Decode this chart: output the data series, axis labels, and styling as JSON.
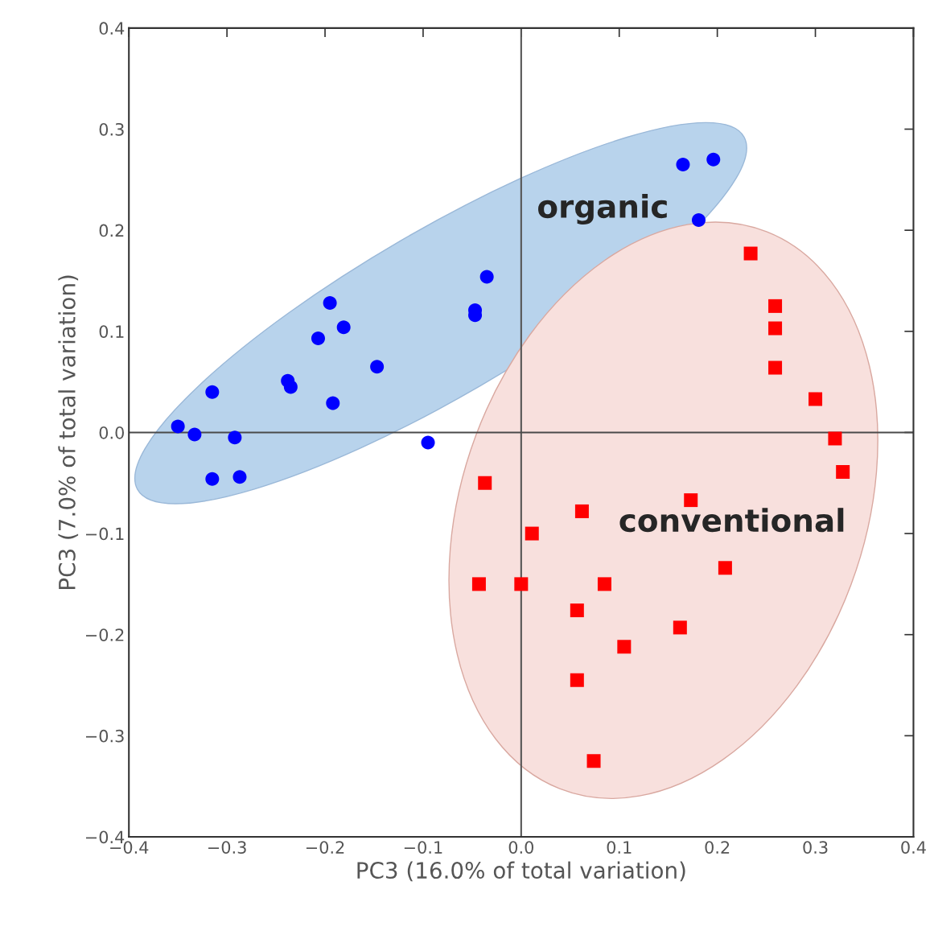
{
  "chart_data": {
    "type": "scatter",
    "xlabel": "PC3 (16.0% of total variation)",
    "ylabel": "PC3 (7.0% of total variation)",
    "series": [
      {
        "color": "#0000ff",
        "marker": "circle",
        "x": [
          -0.35,
          -0.333,
          -0.315,
          -0.292,
          -0.315,
          -0.287,
          -0.238,
          -0.235,
          -0.207,
          -0.195,
          -0.192,
          -0.181,
          -0.147,
          -0.095,
          -0.047,
          -0.047,
          -0.035,
          0.165,
          0.196,
          0.181
        ],
        "values": [
          0.006,
          -0.002,
          0.04,
          -0.005,
          -0.046,
          -0.044,
          0.051,
          0.045,
          0.093,
          0.128,
          0.029,
          0.104,
          0.065,
          -0.01,
          0.121,
          0.116,
          0.154,
          0.265,
          0.27,
          0.21
        ]
      },
      {
        "color": "#ff0000",
        "marker": "square",
        "x": [
          0.234,
          0.259,
          0.259,
          0.259,
          0.3,
          0.32,
          0.328,
          -0.037,
          -0.043,
          0.0,
          0.011,
          0.062,
          0.085,
          0.057,
          0.105,
          0.057,
          0.074,
          0.173,
          0.208,
          0.162
        ],
        "values": [
          0.177,
          0.125,
          0.103,
          0.064,
          0.033,
          -0.006,
          -0.039,
          -0.05,
          -0.15,
          -0.15,
          -0.1,
          -0.078,
          -0.15,
          -0.176,
          -0.212,
          -0.245,
          -0.325,
          -0.067,
          -0.134,
          -0.193
        ]
      }
    ],
    "annotations": [
      "organic",
      "conventional"
    ],
    "ref_lines": [
      {
        "axis": "x",
        "value": 0.0,
        "color": "#555555"
      },
      {
        "axis": "y",
        "value": 0.0,
        "color": "#4a4a4a"
      }
    ],
    "xlim": [
      -0.4,
      0.4
    ],
    "ylim": [
      -0.4,
      0.4
    ],
    "xticks": [
      {
        "value": -0.4,
        "label": "−0.4"
      },
      {
        "value": -0.3,
        "label": "−0.3"
      },
      {
        "value": -0.2,
        "label": "−0.2"
      },
      {
        "value": -0.1,
        "label": "−0.1"
      },
      {
        "value": 0.0,
        "label": "0.0"
      },
      {
        "value": 0.1,
        "label": "0.1"
      },
      {
        "value": 0.2,
        "label": "0.2"
      },
      {
        "value": 0.3,
        "label": "0.3"
      },
      {
        "value": 0.4,
        "label": "0.4"
      }
    ],
    "yticks": [
      {
        "value": -0.4,
        "label": "−0.4"
      },
      {
        "value": -0.3,
        "label": "−0.3"
      },
      {
        "value": -0.2,
        "label": "−0.2"
      },
      {
        "value": -0.1,
        "label": "−0.1"
      },
      {
        "value": 0.0,
        "label": "0.0"
      },
      {
        "value": 0.1,
        "label": "0.1"
      },
      {
        "value": 0.2,
        "label": "0.2"
      },
      {
        "value": 0.3,
        "label": "0.3"
      },
      {
        "value": 0.4,
        "label": "0.4"
      }
    ],
    "grid": false,
    "legend": false
  }
}
